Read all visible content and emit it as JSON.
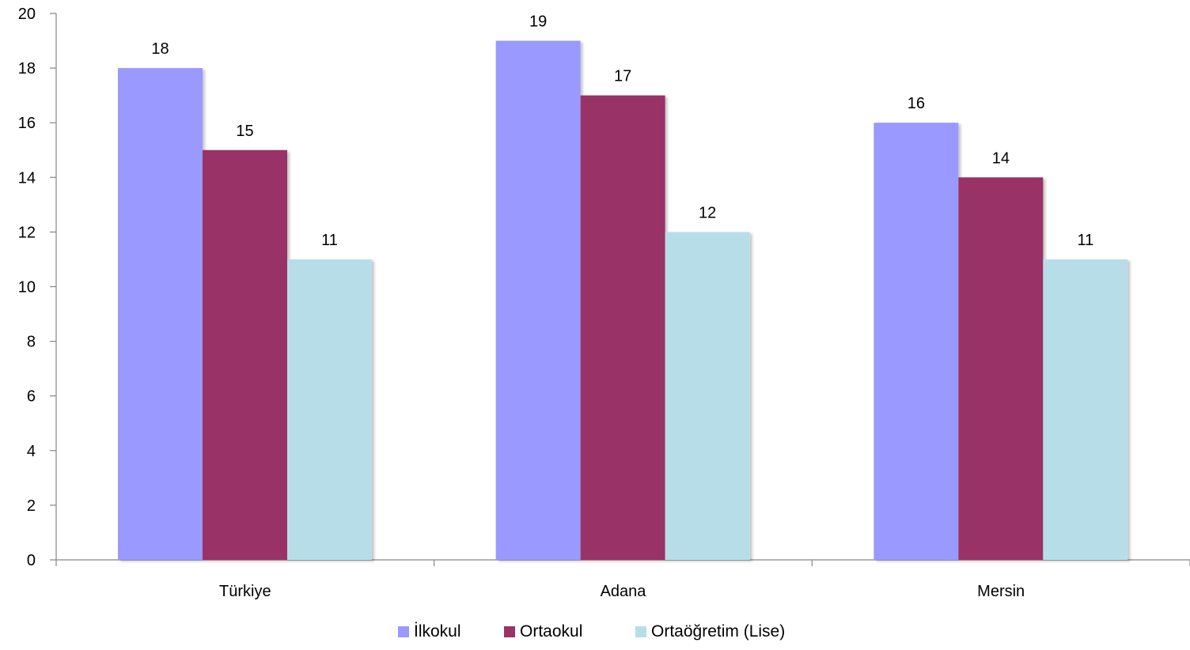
{
  "chart_data": {
    "type": "bar",
    "categories": [
      "Türkiye",
      "Adana",
      "Mersin"
    ],
    "series": [
      {
        "name": "İlkokul",
        "values": [
          18,
          19,
          16
        ],
        "color": "#9999FF"
      },
      {
        "name": "Ortaokul",
        "values": [
          15,
          17,
          14
        ],
        "color": "#993366"
      },
      {
        "name": "Ortaöğretim (Lise)",
        "values": [
          11,
          12,
          11
        ],
        "color": "#B7DEE8"
      }
    ],
    "ylim": [
      0,
      20
    ],
    "yticks": [
      0,
      2,
      4,
      6,
      8,
      10,
      12,
      14,
      16,
      18,
      20
    ],
    "grid": false,
    "legend_position": "bottom",
    "data_labels": true
  }
}
